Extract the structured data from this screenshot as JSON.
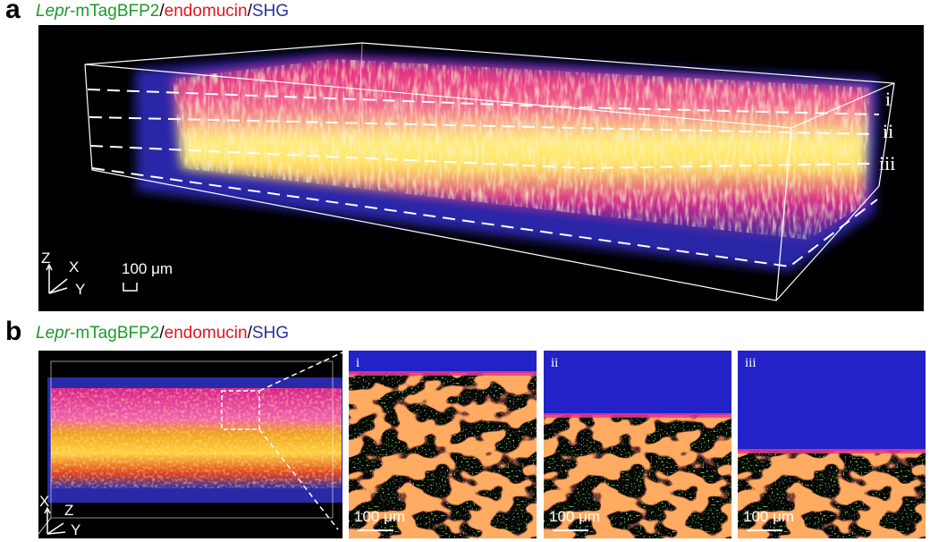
{
  "panel_a": {
    "label": "a",
    "title": {
      "gene": "Lepr",
      "reporter": "-mTagBFP2",
      "sep1": "/",
      "marker": "endomucin",
      "sep2": "/",
      "channel": "SHG"
    },
    "slices": [
      "i",
      "ii",
      "iii"
    ],
    "axes": {
      "z": "Z",
      "x": "X",
      "y": "Y"
    },
    "scale_bar": "100 μm"
  },
  "panel_b": {
    "label": "b",
    "title": {
      "gene": "Lepr",
      "reporter": "-mTagBFP2",
      "sep1": "/",
      "marker": "endomucin",
      "sep2": "/",
      "channel": "SHG"
    },
    "axes": {
      "x": "X",
      "z": "Z",
      "y": "Y"
    },
    "insets": [
      {
        "label": "i",
        "scale_bar": "100 μm"
      },
      {
        "label": "ii",
        "scale_bar": "100 μm"
      },
      {
        "label": "iii",
        "scale_bar": "100 μm"
      }
    ]
  }
}
